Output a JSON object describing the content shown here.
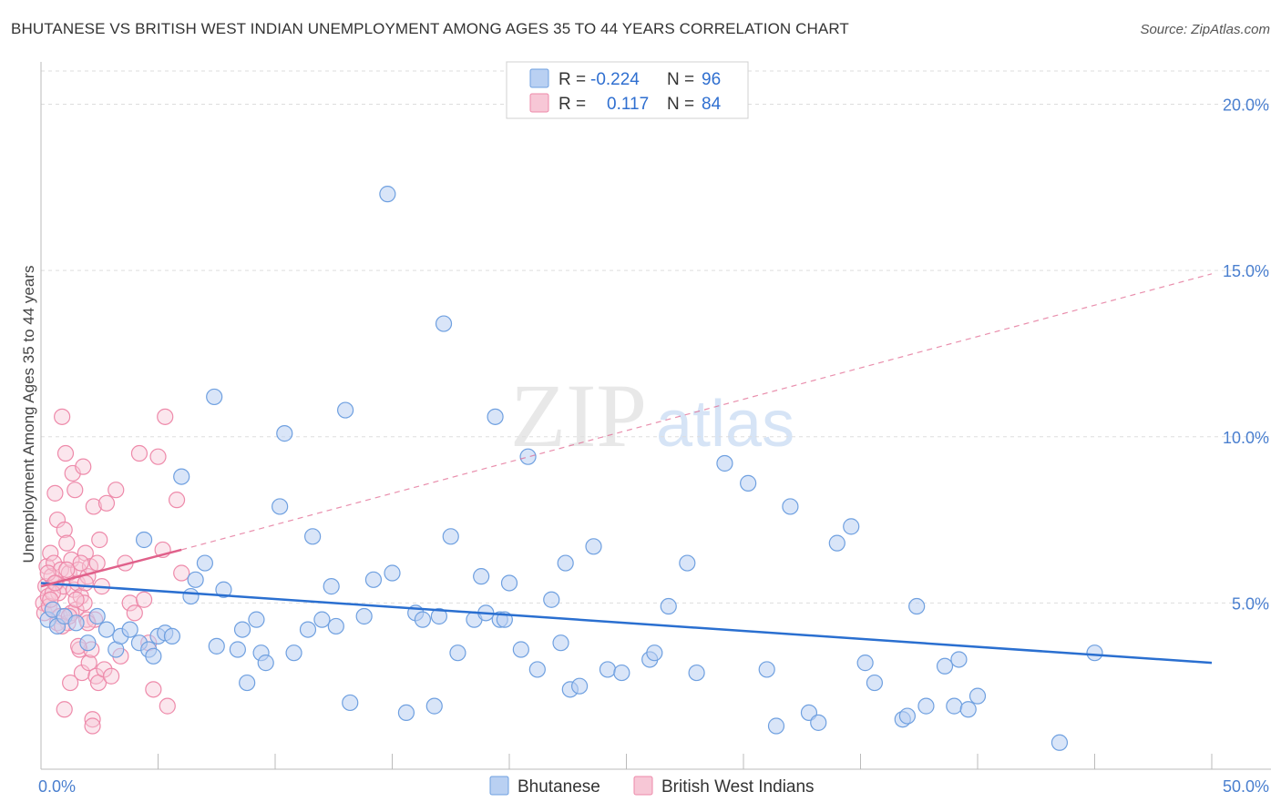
{
  "title": "BHUTANESE VS BRITISH WEST INDIAN UNEMPLOYMENT AMONG AGES 35 TO 44 YEARS CORRELATION CHART",
  "source": "Source: ZipAtlas.com",
  "watermark": {
    "zip": "ZIP",
    "atlas": "atlas"
  },
  "colors": {
    "blue": "#6fa0e0",
    "blue_fill": "#b9d0f2",
    "blue_line": "#2a6fd0",
    "pink": "#ee8aaa",
    "pink_fill": "#f7c7d6",
    "pink_line": "#e0608a",
    "axis_text": "#4a7fcf",
    "grid": "#dddddd"
  },
  "legend": {
    "rows": [
      {
        "r_label": "R =",
        "r_value": "-0.224",
        "n_label": "N =",
        "n_value": "96"
      },
      {
        "r_label": "R =",
        "r_value": "0.117",
        "n_label": "N =",
        "n_value": "84"
      }
    ]
  },
  "bottom_legend": [
    "Bhutanese",
    "British West Indians"
  ],
  "chart_data": {
    "type": "scatter",
    "title": "BHUTANESE VS BRITISH WEST INDIAN UNEMPLOYMENT AMONG AGES 35 TO 44 YEARS CORRELATION CHART",
    "xlabel": "",
    "ylabel": "Unemployment Among Ages 35 to 44 years",
    "xlim": [
      0,
      50
    ],
    "ylim": [
      0,
      21
    ],
    "x_tick_labels": [
      "0.0%",
      "50.0%"
    ],
    "y_ticks": [
      5,
      10,
      15,
      20
    ],
    "y_tick_labels": [
      "5.0%",
      "10.0%",
      "15.0%",
      "20.0%"
    ],
    "series": [
      {
        "name": "Bhutanese",
        "R": -0.224,
        "N": 96,
        "trend": {
          "x": [
            0,
            50
          ],
          "y": [
            5.6,
            3.2
          ],
          "style": "solid"
        },
        "points": [
          [
            0.3,
            4.5
          ],
          [
            0.5,
            4.8
          ],
          [
            0.7,
            4.3
          ],
          [
            1.0,
            4.6
          ],
          [
            1.5,
            4.4
          ],
          [
            2.0,
            3.8
          ],
          [
            2.4,
            4.6
          ],
          [
            2.8,
            4.2
          ],
          [
            3.2,
            3.6
          ],
          [
            3.4,
            4.0
          ],
          [
            3.8,
            4.2
          ],
          [
            4.2,
            3.8
          ],
          [
            4.4,
            6.9
          ],
          [
            4.6,
            3.6
          ],
          [
            4.8,
            3.4
          ],
          [
            5.0,
            4.0
          ],
          [
            5.3,
            4.1
          ],
          [
            5.6,
            4.0
          ],
          [
            6.0,
            8.8
          ],
          [
            6.4,
            5.2
          ],
          [
            6.6,
            5.7
          ],
          [
            7.0,
            6.2
          ],
          [
            7.4,
            11.2
          ],
          [
            7.5,
            3.7
          ],
          [
            7.8,
            5.4
          ],
          [
            8.4,
            3.6
          ],
          [
            8.6,
            4.2
          ],
          [
            8.8,
            2.6
          ],
          [
            9.2,
            4.5
          ],
          [
            9.4,
            3.5
          ],
          [
            9.6,
            3.2
          ],
          [
            10.2,
            7.9
          ],
          [
            10.4,
            10.1
          ],
          [
            10.8,
            3.5
          ],
          [
            11.4,
            4.2
          ],
          [
            11.6,
            7.0
          ],
          [
            12.0,
            4.5
          ],
          [
            12.4,
            5.5
          ],
          [
            12.6,
            4.3
          ],
          [
            13.0,
            10.8
          ],
          [
            13.2,
            2.0
          ],
          [
            13.8,
            4.6
          ],
          [
            14.2,
            5.7
          ],
          [
            14.8,
            17.3
          ],
          [
            15.0,
            5.9
          ],
          [
            15.6,
            1.7
          ],
          [
            16.0,
            4.7
          ],
          [
            16.3,
            4.5
          ],
          [
            16.8,
            1.9
          ],
          [
            17.0,
            4.6
          ],
          [
            17.2,
            13.4
          ],
          [
            17.5,
            7.0
          ],
          [
            17.8,
            3.5
          ],
          [
            18.5,
            4.5
          ],
          [
            18.8,
            5.8
          ],
          [
            19.0,
            4.7
          ],
          [
            19.4,
            10.6
          ],
          [
            19.6,
            4.5
          ],
          [
            19.8,
            4.5
          ],
          [
            20.0,
            5.6
          ],
          [
            20.5,
            3.6
          ],
          [
            20.8,
            9.4
          ],
          [
            21.2,
            3.0
          ],
          [
            21.8,
            5.1
          ],
          [
            22.2,
            3.8
          ],
          [
            22.4,
            6.2
          ],
          [
            22.6,
            2.4
          ],
          [
            23.0,
            2.5
          ],
          [
            23.6,
            6.7
          ],
          [
            24.2,
            3.0
          ],
          [
            24.8,
            2.9
          ],
          [
            26.0,
            3.3
          ],
          [
            26.2,
            3.5
          ],
          [
            26.8,
            4.9
          ],
          [
            27.6,
            6.2
          ],
          [
            28.0,
            2.9
          ],
          [
            29.2,
            9.2
          ],
          [
            30.2,
            8.6
          ],
          [
            31.0,
            3.0
          ],
          [
            31.4,
            1.3
          ],
          [
            32.0,
            7.9
          ],
          [
            32.8,
            1.7
          ],
          [
            33.2,
            1.4
          ],
          [
            34.0,
            6.8
          ],
          [
            34.6,
            7.3
          ],
          [
            35.2,
            3.2
          ],
          [
            35.6,
            2.6
          ],
          [
            36.8,
            1.5
          ],
          [
            37.0,
            1.6
          ],
          [
            37.4,
            4.9
          ],
          [
            37.8,
            1.9
          ],
          [
            38.6,
            3.1
          ],
          [
            39.0,
            1.9
          ],
          [
            39.2,
            3.3
          ],
          [
            39.6,
            1.8
          ],
          [
            40.0,
            2.2
          ],
          [
            45.0,
            3.5
          ],
          [
            43.5,
            0.8
          ]
        ]
      },
      {
        "name": "British West Indians",
        "R": 0.117,
        "N": 84,
        "trend": {
          "x": [
            0,
            6.0
          ],
          "y": [
            5.5,
            6.6
          ],
          "style": "solid",
          "extended": {
            "x": [
              6.0,
              50
            ],
            "y": [
              6.6,
              14.9
            ],
            "style": "dashed"
          }
        },
        "points": [
          [
            0.1,
            5.0
          ],
          [
            0.15,
            4.7
          ],
          [
            0.2,
            5.5
          ],
          [
            0.25,
            6.1
          ],
          [
            0.3,
            5.2
          ],
          [
            0.35,
            4.9
          ],
          [
            0.4,
            6.5
          ],
          [
            0.45,
            5.8
          ],
          [
            0.5,
            4.8
          ],
          [
            0.55,
            6.2
          ],
          [
            0.6,
            8.3
          ],
          [
            0.65,
            5.6
          ],
          [
            0.7,
            7.5
          ],
          [
            0.75,
            5.3
          ],
          [
            0.8,
            4.6
          ],
          [
            0.85,
            6.0
          ],
          [
            0.9,
            10.6
          ],
          [
            0.95,
            5.5
          ],
          [
            1.0,
            7.2
          ],
          [
            1.05,
            9.5
          ],
          [
            1.1,
            6.8
          ],
          [
            1.15,
            4.4
          ],
          [
            1.2,
            5.9
          ],
          [
            1.25,
            2.6
          ],
          [
            1.3,
            6.3
          ],
          [
            1.35,
            8.9
          ],
          [
            1.4,
            5.4
          ],
          [
            1.45,
            8.4
          ],
          [
            1.5,
            4.8
          ],
          [
            1.55,
            5.6
          ],
          [
            1.6,
            6.0
          ],
          [
            1.65,
            3.6
          ],
          [
            1.7,
            5.2
          ],
          [
            1.75,
            2.9
          ],
          [
            1.8,
            9.1
          ],
          [
            1.85,
            5.0
          ],
          [
            1.9,
            6.5
          ],
          [
            1.95,
            4.5
          ],
          [
            2.0,
            5.8
          ],
          [
            2.05,
            3.2
          ],
          [
            2.1,
            6.1
          ],
          [
            2.15,
            3.6
          ],
          [
            2.2,
            1.5
          ],
          [
            2.25,
            7.9
          ],
          [
            2.3,
            4.5
          ],
          [
            2.35,
            2.8
          ],
          [
            2.4,
            6.2
          ],
          [
            2.45,
            2.6
          ],
          [
            2.5,
            6.9
          ],
          [
            2.6,
            5.5
          ],
          [
            2.7,
            3.0
          ],
          [
            2.8,
            8.0
          ],
          [
            3.0,
            2.8
          ],
          [
            3.2,
            8.4
          ],
          [
            3.4,
            3.4
          ],
          [
            3.6,
            6.2
          ],
          [
            3.8,
            5.0
          ],
          [
            4.0,
            4.7
          ],
          [
            4.2,
            9.5
          ],
          [
            4.4,
            5.1
          ],
          [
            4.6,
            3.8
          ],
          [
            4.8,
            2.4
          ],
          [
            5.0,
            9.4
          ],
          [
            5.2,
            6.6
          ],
          [
            5.3,
            10.6
          ],
          [
            5.4,
            1.9
          ],
          [
            5.8,
            8.1
          ],
          [
            6.0,
            5.9
          ],
          [
            0.3,
            5.9
          ],
          [
            0.5,
            5.3
          ],
          [
            0.7,
            4.4
          ],
          [
            0.9,
            4.3
          ],
          [
            1.1,
            6.0
          ],
          [
            1.3,
            4.7
          ],
          [
            1.5,
            5.1
          ],
          [
            1.7,
            6.2
          ],
          [
            1.9,
            5.6
          ],
          [
            2.0,
            4.4
          ],
          [
            2.2,
            1.3
          ],
          [
            1.0,
            1.8
          ],
          [
            0.6,
            5.6
          ],
          [
            0.4,
            5.1
          ],
          [
            1.2,
            4.6
          ],
          [
            1.6,
            3.7
          ]
        ]
      }
    ]
  }
}
